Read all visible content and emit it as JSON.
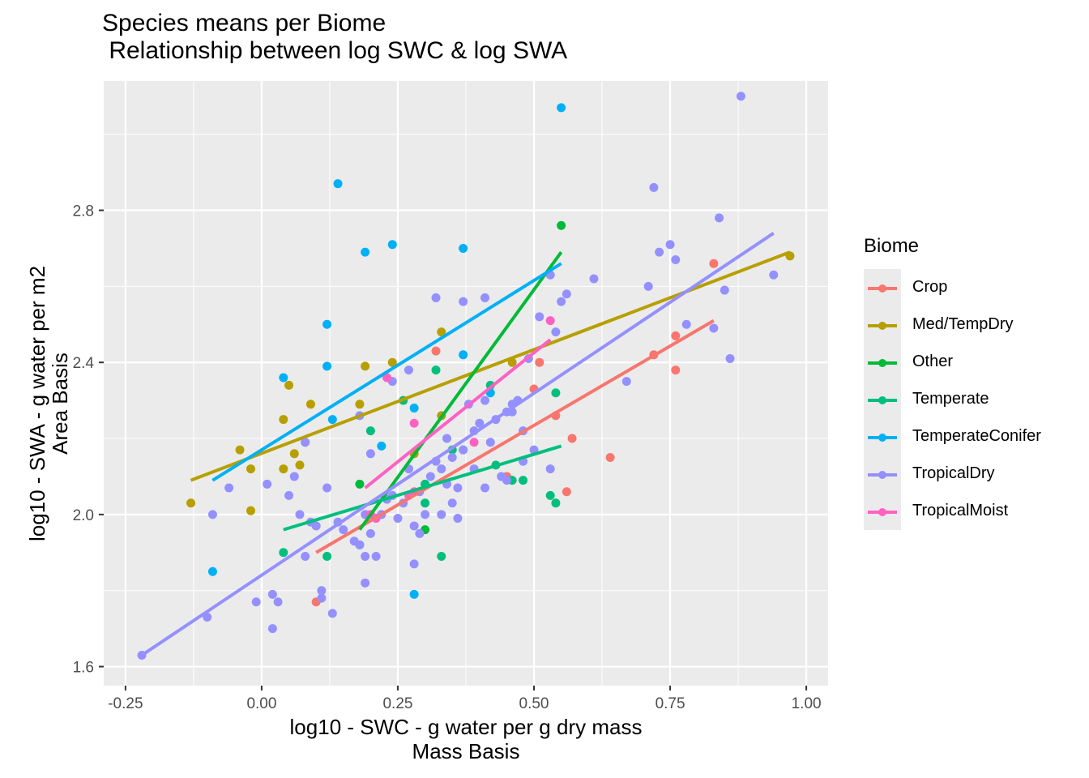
{
  "chart_data": {
    "type": "scatter",
    "title_line1": "Species means per Biome",
    "title_line2": " Relationship between log SWC & log SWA",
    "xlabel_line1": "log10 - SWC - g water per g dry mass",
    "xlabel_line2": "Mass Basis",
    "ylabel_line1": "log10 - SWA - g water per m2",
    "ylabel_line2": "Area Basis",
    "xlim": [
      -0.29,
      1.04
    ],
    "ylim": [
      1.55,
      3.14
    ],
    "x_ticks": [
      -0.25,
      0.0,
      0.25,
      0.5,
      0.75,
      1.0
    ],
    "x_tick_labels": [
      "-0.25",
      "0.00",
      "0.25",
      "0.50",
      "0.75",
      "1.00"
    ],
    "y_ticks": [
      1.6,
      2.0,
      2.4,
      2.8
    ],
    "y_tick_labels": [
      "1.6",
      "2.0",
      "2.4",
      "2.8"
    ],
    "grid": true,
    "legend_title": "Biome",
    "legend_position": "right",
    "series": [
      {
        "name": "Crop",
        "color": "#F8766D",
        "points": [
          [
            0.1,
            1.77
          ],
          [
            0.22,
            2.0
          ],
          [
            0.32,
            2.43
          ],
          [
            0.45,
            2.1
          ],
          [
            0.5,
            2.33
          ],
          [
            0.51,
            2.4
          ],
          [
            0.54,
            2.26
          ],
          [
            0.57,
            2.2
          ],
          [
            0.56,
            2.06
          ],
          [
            0.64,
            2.15
          ],
          [
            0.72,
            2.42
          ],
          [
            0.76,
            2.47
          ],
          [
            0.76,
            2.38
          ],
          [
            0.83,
            2.66
          ]
        ],
        "fit": [
          [
            0.1,
            1.9
          ],
          [
            0.83,
            2.51
          ]
        ]
      },
      {
        "name": "Med/TempDry",
        "color": "#B79F00",
        "points": [
          [
            -0.13,
            2.03
          ],
          [
            -0.04,
            2.17
          ],
          [
            -0.02,
            2.12
          ],
          [
            -0.02,
            2.01
          ],
          [
            0.04,
            2.25
          ],
          [
            0.05,
            2.34
          ],
          [
            0.04,
            2.12
          ],
          [
            0.06,
            2.16
          ],
          [
            0.07,
            2.13
          ],
          [
            0.08,
            2.19
          ],
          [
            0.09,
            2.29
          ],
          [
            0.18,
            2.29
          ],
          [
            0.19,
            2.39
          ],
          [
            0.24,
            2.4
          ],
          [
            0.28,
            2.16
          ],
          [
            0.33,
            2.48
          ],
          [
            0.33,
            2.26
          ],
          [
            0.46,
            2.4
          ],
          [
            0.97,
            2.68
          ]
        ],
        "fit": [
          [
            -0.13,
            2.09
          ],
          [
            0.97,
            2.69
          ]
        ]
      },
      {
        "name": "Other",
        "color": "#00BA38",
        "points": [
          [
            0.18,
            2.08
          ],
          [
            0.3,
            1.96
          ],
          [
            0.55,
            2.76
          ]
        ],
        "fit": [
          [
            0.18,
            1.96
          ],
          [
            0.55,
            2.69
          ]
        ]
      },
      {
        "name": "Temperate",
        "color": "#00BF7D",
        "points": [
          [
            0.04,
            1.9
          ],
          [
            0.12,
            1.89
          ],
          [
            0.18,
            1.92
          ],
          [
            0.2,
            2.22
          ],
          [
            0.26,
            2.3
          ],
          [
            0.3,
            2.08
          ],
          [
            0.3,
            2.03
          ],
          [
            0.32,
            2.38
          ],
          [
            0.33,
            1.89
          ],
          [
            0.35,
            2.17
          ],
          [
            0.37,
            2.17
          ],
          [
            0.42,
            2.34
          ],
          [
            0.43,
            2.13
          ],
          [
            0.46,
            2.09
          ],
          [
            0.48,
            2.09
          ],
          [
            0.53,
            2.05
          ],
          [
            0.54,
            2.03
          ],
          [
            0.54,
            2.32
          ]
        ],
        "fit": [
          [
            0.04,
            1.96
          ],
          [
            0.55,
            2.18
          ]
        ]
      },
      {
        "name": "TemperateConifer",
        "color": "#00B0F6",
        "points": [
          [
            -0.09,
            1.85
          ],
          [
            0.04,
            2.36
          ],
          [
            0.12,
            2.5
          ],
          [
            0.12,
            2.39
          ],
          [
            0.13,
            2.25
          ],
          [
            0.14,
            2.87
          ],
          [
            0.19,
            2.69
          ],
          [
            0.22,
            2.18
          ],
          [
            0.24,
            2.71
          ],
          [
            0.28,
            2.28
          ],
          [
            0.28,
            1.79
          ],
          [
            0.37,
            2.7
          ],
          [
            0.37,
            2.42
          ],
          [
            0.42,
            2.32
          ],
          [
            0.55,
            3.07
          ]
        ],
        "fit": [
          [
            -0.09,
            2.09
          ],
          [
            0.55,
            2.66
          ]
        ]
      },
      {
        "name": "TropicalDry",
        "color": "#9590FF",
        "points": [
          [
            -0.22,
            1.63
          ],
          [
            -0.1,
            1.73
          ],
          [
            -0.09,
            2.0
          ],
          [
            -0.06,
            2.07
          ],
          [
            -0.01,
            1.77
          ],
          [
            0.01,
            2.08
          ],
          [
            0.02,
            1.79
          ],
          [
            0.02,
            1.7
          ],
          [
            0.03,
            1.77
          ],
          [
            0.05,
            2.05
          ],
          [
            0.06,
            2.1
          ],
          [
            0.07,
            2.0
          ],
          [
            0.08,
            1.89
          ],
          [
            0.08,
            2.19
          ],
          [
            0.09,
            1.98
          ],
          [
            0.1,
            1.97
          ],
          [
            0.11,
            1.78
          ],
          [
            0.11,
            1.8
          ],
          [
            0.12,
            2.07
          ],
          [
            0.13,
            1.74
          ],
          [
            0.14,
            1.98
          ],
          [
            0.15,
            1.96
          ],
          [
            0.17,
            1.93
          ],
          [
            0.18,
            1.92
          ],
          [
            0.18,
            2.26
          ],
          [
            0.19,
            1.82
          ],
          [
            0.19,
            2.0
          ],
          [
            0.19,
            1.89
          ],
          [
            0.2,
            2.16
          ],
          [
            0.2,
            1.95
          ],
          [
            0.21,
            1.89
          ],
          [
            0.22,
            2.0
          ],
          [
            0.23,
            2.04
          ],
          [
            0.24,
            2.35
          ],
          [
            0.24,
            2.05
          ],
          [
            0.25,
            1.99
          ],
          [
            0.26,
            2.03
          ],
          [
            0.27,
            2.38
          ],
          [
            0.27,
            2.12
          ],
          [
            0.28,
            1.87
          ],
          [
            0.28,
            1.97
          ],
          [
            0.29,
            1.95
          ],
          [
            0.29,
            2.06
          ],
          [
            0.3,
            2.0
          ],
          [
            0.31,
            2.1
          ],
          [
            0.32,
            2.14
          ],
          [
            0.32,
            2.57
          ],
          [
            0.33,
            2.0
          ],
          [
            0.33,
            2.12
          ],
          [
            0.34,
            2.08
          ],
          [
            0.34,
            2.2
          ],
          [
            0.35,
            2.15
          ],
          [
            0.35,
            2.03
          ],
          [
            0.36,
            1.99
          ],
          [
            0.36,
            2.07
          ],
          [
            0.37,
            2.56
          ],
          [
            0.37,
            2.17
          ],
          [
            0.38,
            2.29
          ],
          [
            0.39,
            2.22
          ],
          [
            0.39,
            2.12
          ],
          [
            0.4,
            2.24
          ],
          [
            0.41,
            2.07
          ],
          [
            0.41,
            2.3
          ],
          [
            0.41,
            2.57
          ],
          [
            0.42,
            2.19
          ],
          [
            0.43,
            2.25
          ],
          [
            0.44,
            2.1
          ],
          [
            0.45,
            2.27
          ],
          [
            0.45,
            2.09
          ],
          [
            0.46,
            2.27
          ],
          [
            0.46,
            2.29
          ],
          [
            0.47,
            2.3
          ],
          [
            0.48,
            2.14
          ],
          [
            0.48,
            2.22
          ],
          [
            0.49,
            2.41
          ],
          [
            0.5,
            2.17
          ],
          [
            0.51,
            2.52
          ],
          [
            0.53,
            2.63
          ],
          [
            0.54,
            2.48
          ],
          [
            0.55,
            2.56
          ],
          [
            0.56,
            2.58
          ],
          [
            0.61,
            2.62
          ],
          [
            0.67,
            2.35
          ],
          [
            0.71,
            2.6
          ],
          [
            0.72,
            2.86
          ],
          [
            0.73,
            2.69
          ],
          [
            0.75,
            2.71
          ],
          [
            0.76,
            2.67
          ],
          [
            0.78,
            2.5
          ],
          [
            0.83,
            2.49
          ],
          [
            0.84,
            2.78
          ],
          [
            0.85,
            2.59
          ],
          [
            0.86,
            2.41
          ],
          [
            0.88,
            3.1
          ],
          [
            0.94,
            2.63
          ],
          [
            0.53,
            2.12
          ]
        ],
        "fit": [
          [
            -0.22,
            1.63
          ],
          [
            0.94,
            2.74
          ]
        ]
      },
      {
        "name": "TropicalMoist",
        "color": "#FF61C3",
        "points": [
          [
            0.2,
            2.0
          ],
          [
            0.21,
            1.99
          ],
          [
            0.23,
            2.36
          ],
          [
            0.27,
            2.05
          ],
          [
            0.28,
            2.24
          ],
          [
            0.28,
            2.06
          ],
          [
            0.39,
            2.19
          ],
          [
            0.53,
            2.51
          ]
        ],
        "fit": [
          [
            0.19,
            2.07
          ],
          [
            0.53,
            2.46
          ]
        ]
      }
    ]
  }
}
